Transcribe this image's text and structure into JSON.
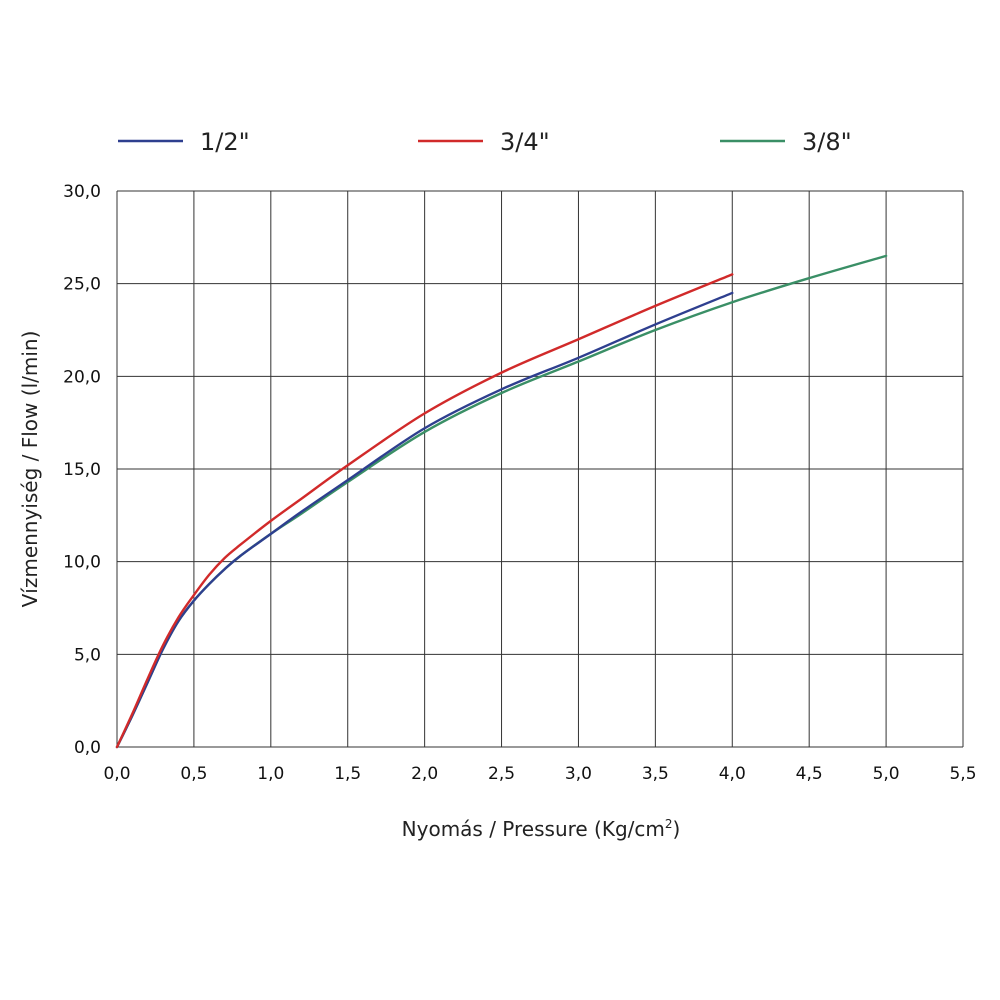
{
  "chart_data": {
    "type": "line",
    "xlabel": "Nyomás / Pressure (Kg/cm",
    "xlabel_sup": "2",
    "xlabel_end": ")",
    "ylabel": "Vízmennyiség / Flow (l/min)",
    "xlim": [
      0,
      5.5
    ],
    "ylim": [
      0,
      30
    ],
    "x_ticks": [
      "0,0",
      "0,5",
      "1,0",
      "1,5",
      "2,0",
      "2,5",
      "3,0",
      "3,5",
      "4,0",
      "4,5",
      "5,0",
      "5,5"
    ],
    "y_ticks": [
      "0,0",
      "5,0",
      "10,0",
      "15,0",
      "20,0",
      "25,0",
      "30,0"
    ],
    "grid": true,
    "legend_position": "top",
    "series": [
      {
        "name": "1/2\"",
        "color": "#2e3f8f",
        "points": [
          [
            0,
            0
          ],
          [
            0.1,
            1.7
          ],
          [
            0.2,
            3.5
          ],
          [
            0.3,
            5.3
          ],
          [
            0.4,
            6.8
          ],
          [
            0.5,
            7.9
          ],
          [
            0.6,
            8.8
          ],
          [
            0.7,
            9.6
          ],
          [
            0.8,
            10.3
          ],
          [
            1.0,
            11.5
          ],
          [
            1.2,
            12.7
          ],
          [
            1.5,
            14.4
          ],
          [
            2.0,
            17.2
          ],
          [
            2.5,
            19.3
          ],
          [
            3.0,
            21.0
          ],
          [
            3.5,
            22.8
          ],
          [
            4.0,
            24.5
          ]
        ]
      },
      {
        "name": "3/4\"",
        "color": "#d12a2a",
        "points": [
          [
            0,
            0
          ],
          [
            0.1,
            1.8
          ],
          [
            0.2,
            3.7
          ],
          [
            0.3,
            5.5
          ],
          [
            0.4,
            7.0
          ],
          [
            0.5,
            8.2
          ],
          [
            0.6,
            9.3
          ],
          [
            0.7,
            10.2
          ],
          [
            0.8,
            10.9
          ],
          [
            1.0,
            12.2
          ],
          [
            1.2,
            13.4
          ],
          [
            1.5,
            15.2
          ],
          [
            2.0,
            18.0
          ],
          [
            2.5,
            20.2
          ],
          [
            3.0,
            22.0
          ],
          [
            3.5,
            23.8
          ],
          [
            4.0,
            25.5
          ]
        ]
      },
      {
        "name": "3/8\"",
        "color": "#3a8f66",
        "points": [
          [
            0,
            0
          ],
          [
            0.1,
            1.7
          ],
          [
            0.2,
            3.5
          ],
          [
            0.3,
            5.3
          ],
          [
            0.4,
            6.8
          ],
          [
            0.5,
            7.9
          ],
          [
            0.6,
            8.8
          ],
          [
            0.7,
            9.6
          ],
          [
            0.8,
            10.3
          ],
          [
            1.0,
            11.5
          ],
          [
            1.2,
            12.6
          ],
          [
            1.5,
            14.3
          ],
          [
            2.0,
            17.0
          ],
          [
            2.5,
            19.1
          ],
          [
            3.0,
            20.8
          ],
          [
            3.5,
            22.5
          ],
          [
            4.0,
            24.0
          ],
          [
            4.5,
            25.3
          ],
          [
            5.0,
            26.5
          ]
        ]
      }
    ]
  }
}
